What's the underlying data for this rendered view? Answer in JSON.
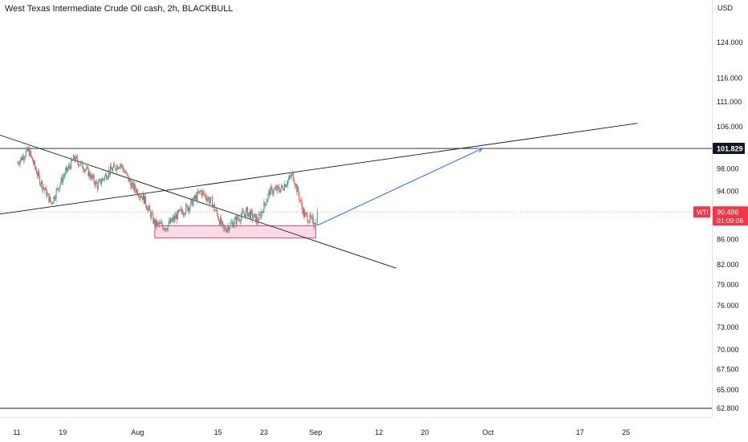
{
  "header": {
    "title": "West Texas Intermediate Crude Oil cash, 2h, BLACKBULL",
    "currency": "USD"
  },
  "colors": {
    "up": "#26a69a",
    "down": "#ef5350",
    "trendline": "#131722",
    "arrow": "#2962ff",
    "zone_fill": "#f8bbd0",
    "zone_border": "#e91e63",
    "last_price_badge": "#f23645",
    "level_badge": "#131722"
  },
  "badges": {
    "level": "101.829",
    "symbol": "WTI",
    "last_price": "90.486",
    "countdown": "01:09:06"
  },
  "chart_data": {
    "type": "candlestick",
    "title": "West Texas Intermediate Crude Oil cash, 2h, BLACKBULL",
    "y_unit": "USD",
    "y_scale": "log",
    "y_ticks": [
      "124.000",
      "116.000",
      "111.000",
      "106.000",
      "98.000",
      "94.000",
      "86.000",
      "82.000",
      "79.000",
      "76.000",
      "73.000",
      "70.000",
      "67.500",
      "65.000",
      "62.800"
    ],
    "x_ticks": [
      "11",
      "19",
      "Aug",
      "15",
      "23",
      "Sep",
      "12",
      "20",
      "Oct",
      "17",
      "25"
    ],
    "price_path": [
      {
        "t": "Jul 11",
        "p": 99
      },
      {
        "t": "Jul 13",
        "p": 101.5
      },
      {
        "t": "Jul 15",
        "p": 96
      },
      {
        "t": "Jul 17",
        "p": 92
      },
      {
        "t": "Jul 19",
        "p": 96.5
      },
      {
        "t": "Jul 21",
        "p": 100
      },
      {
        "t": "Jul 23",
        "p": 98
      },
      {
        "t": "Jul 25",
        "p": 95
      },
      {
        "t": "Jul 27",
        "p": 97.5
      },
      {
        "t": "Jul 29",
        "p": 99
      },
      {
        "t": "Jul 31",
        "p": 95
      },
      {
        "t": "Aug 2",
        "p": 93
      },
      {
        "t": "Aug 4",
        "p": 88.5
      },
      {
        "t": "Aug 6",
        "p": 88
      },
      {
        "t": "Aug 8",
        "p": 90
      },
      {
        "t": "Aug 10",
        "p": 91.5
      },
      {
        "t": "Aug 12",
        "p": 94
      },
      {
        "t": "Aug 14",
        "p": 92
      },
      {
        "t": "Aug 16",
        "p": 87.5
      },
      {
        "t": "Aug 18",
        "p": 89
      },
      {
        "t": "Aug 20",
        "p": 90.5
      },
      {
        "t": "Aug 22",
        "p": 89
      },
      {
        "t": "Aug 24",
        "p": 94
      },
      {
        "t": "Aug 26",
        "p": 94.5
      },
      {
        "t": "Aug 28",
        "p": 97
      },
      {
        "t": "Aug 30",
        "p": 90
      },
      {
        "t": "Sep 1",
        "p": 88.5
      },
      {
        "t": "Sep 1 (last)",
        "p": 90.486
      }
    ],
    "horizontal_lines": [
      101.829,
      62.8
    ],
    "support_zone": {
      "from": "Aug 4",
      "to": "Sep 1",
      "low": 86.2,
      "high": 88.2
    },
    "descending_trendline": {
      "from": {
        "t": "Jun 26",
        "p": 109
      },
      "to": {
        "t": "Sep 15",
        "p": 81.5
      }
    },
    "ascending_trendline": {
      "from": {
        "t": "Jun 26",
        "p": 88.5
      },
      "to": {
        "t": "Oct 27",
        "p": 106.7
      }
    },
    "projection_arrow": {
      "from": {
        "t": "Sep 1",
        "p": 88.3
      },
      "to": {
        "t": "Sep 30",
        "p": 101.829
      }
    }
  }
}
